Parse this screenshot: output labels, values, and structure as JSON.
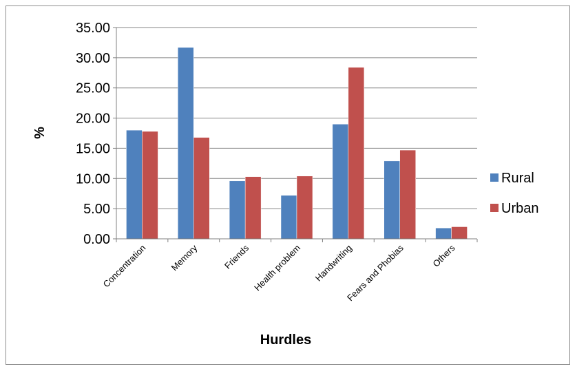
{
  "chart_data": {
    "type": "bar",
    "categories": [
      "Concentration",
      "Memory",
      "Friends",
      "Health problem",
      "Handwriting",
      "Fears and Phobias",
      "Others"
    ],
    "series": [
      {
        "name": "Rural",
        "color": "#4f81bd",
        "values": [
          18.0,
          31.7,
          9.6,
          7.2,
          19.0,
          12.9,
          1.8
        ]
      },
      {
        "name": "Urban",
        "color": "#c0504d",
        "values": [
          17.8,
          16.8,
          10.3,
          10.4,
          28.4,
          14.7,
          2.0
        ]
      }
    ],
    "title": "",
    "xlabel": "Hurdles",
    "ylabel": "%",
    "ylim": [
      0,
      35
    ],
    "yticks": [
      "0.00",
      "5.00",
      "10.00",
      "15.00",
      "20.00",
      "25.00",
      "30.00",
      "35.00"
    ],
    "grid": true,
    "legend_position": "right"
  }
}
